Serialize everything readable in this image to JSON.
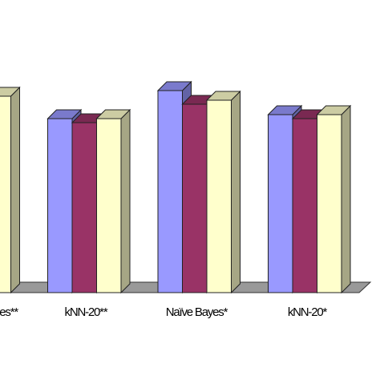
{
  "chart_data": {
    "type": "bar3d",
    "categories": [
      "es**",
      "kNN-20**",
      "Naïve Bayes*",
      "kNN-20*"
    ],
    "series": [
      {
        "color": "#9999ff",
        "values": [
          null,
          217,
          252,
          222
        ]
      },
      {
        "color": "#993366",
        "values": [
          null,
          212,
          235,
          217
        ]
      },
      {
        "color": "#ffffcc",
        "values": [
          245,
          217,
          240,
          222
        ]
      }
    ]
  }
}
